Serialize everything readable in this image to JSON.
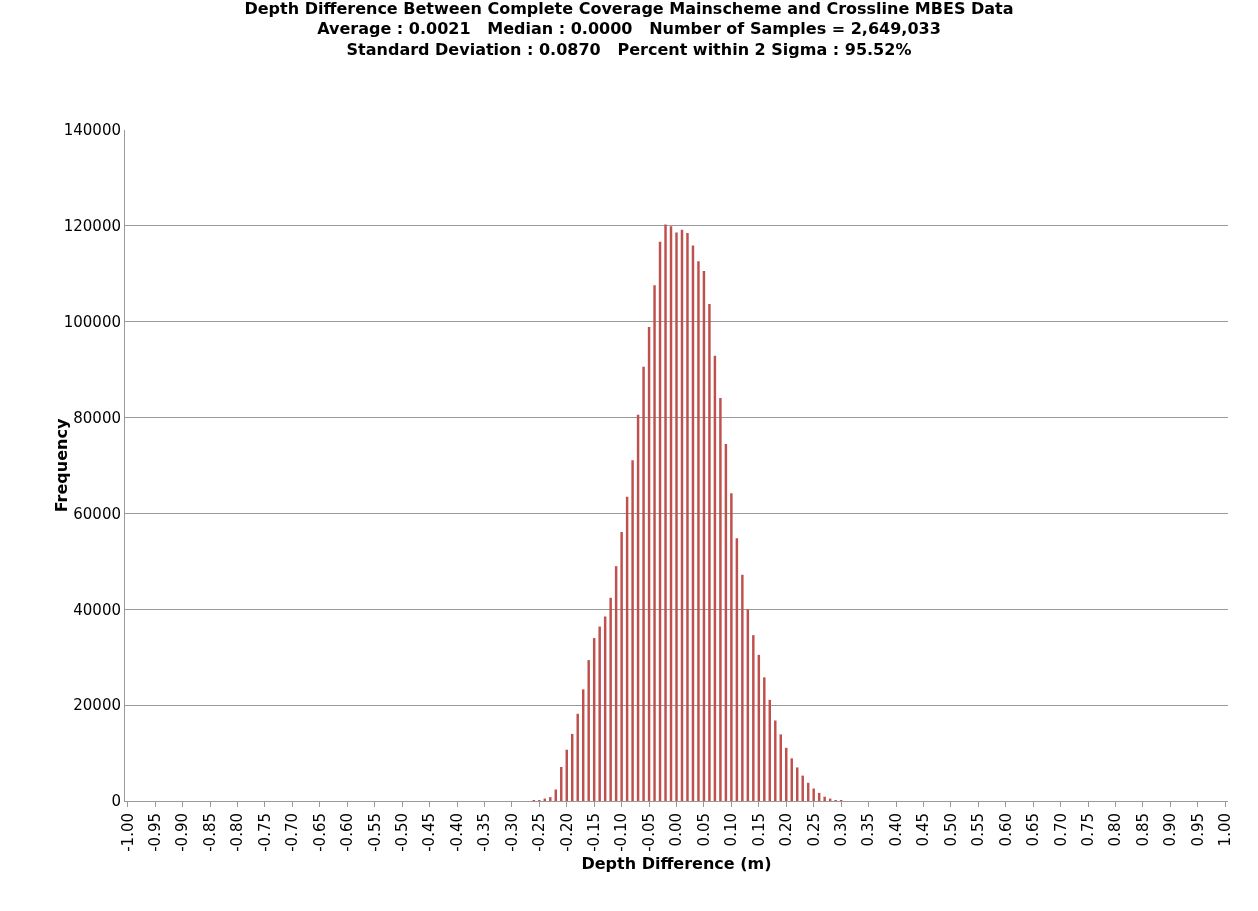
{
  "chart_data": {
    "type": "bar",
    "title": "Depth Difference Between Complete Coverage Mainscheme and Crossline MBES Data",
    "subtitle": "Average : 0.0021   Median : 0.0000   Number of Samples = 2,649,033\nStandard Deviation : 0.0870   Percent within 2 Sigma : 95.52%",
    "xlabel": "Depth Difference (m)",
    "ylabel": "Frequency",
    "categories": [
      "-1.00",
      null,
      null,
      null,
      null,
      "-0.95",
      null,
      null,
      null,
      null,
      "-0.90",
      null,
      null,
      null,
      null,
      "-0.85",
      null,
      null,
      null,
      null,
      "-0.80",
      null,
      null,
      null,
      null,
      "-0.75",
      null,
      null,
      null,
      null,
      "-0.70",
      null,
      null,
      null,
      null,
      "-0.65",
      null,
      null,
      null,
      null,
      "-0.60",
      null,
      null,
      null,
      null,
      "-0.55",
      null,
      null,
      null,
      null,
      "-0.50",
      null,
      null,
      null,
      null,
      "-0.45",
      null,
      null,
      null,
      null,
      "-0.40",
      null,
      null,
      null,
      null,
      "-0.35",
      null,
      null,
      null,
      null,
      "-0.30",
      null,
      null,
      null,
      null,
      "-0.25",
      null,
      null,
      null,
      null,
      "-0.20",
      null,
      null,
      null,
      null,
      "-0.15",
      null,
      null,
      null,
      null,
      "-0.10",
      null,
      null,
      null,
      null,
      "-0.05",
      null,
      null,
      null,
      null,
      "0.00",
      null,
      null,
      null,
      null,
      "0.05",
      null,
      null,
      null,
      null,
      "0.10",
      null,
      null,
      null,
      null,
      "0.15",
      null,
      null,
      null,
      null,
      "0.20",
      null,
      null,
      null,
      null,
      "0.25",
      null,
      null,
      null,
      null,
      "0.30",
      null,
      null,
      null,
      null,
      "0.35",
      null,
      null,
      null,
      null,
      "0.40",
      null,
      null,
      null,
      null,
      "0.45",
      null,
      null,
      null,
      null,
      "0.50",
      null,
      null,
      null,
      null,
      "0.55",
      null,
      null,
      null,
      null,
      "0.60",
      null,
      null,
      null,
      null,
      "0.65",
      null,
      null,
      null,
      null,
      "0.70",
      null,
      null,
      null,
      null,
      "0.75",
      null,
      null,
      null,
      null,
      "0.80",
      null,
      null,
      null,
      null,
      "0.85",
      null,
      null,
      null,
      null,
      "0.90",
      null,
      null,
      null,
      null,
      "0.95",
      null,
      null,
      null,
      null,
      "1.00"
    ],
    "values": [
      0,
      0,
      0,
      0,
      0,
      0,
      0,
      0,
      0,
      0,
      0,
      0,
      0,
      0,
      0,
      0,
      0,
      0,
      0,
      0,
      0,
      0,
      0,
      0,
      0,
      0,
      0,
      0,
      0,
      0,
      0,
      0,
      0,
      0,
      0,
      0,
      0,
      0,
      0,
      0,
      0,
      0,
      0,
      0,
      0,
      0,
      0,
      0,
      0,
      0,
      0,
      0,
      0,
      0,
      0,
      0,
      0,
      0,
      0,
      0,
      0,
      0,
      0,
      0,
      0,
      0,
      0,
      0,
      0,
      0,
      0,
      0,
      0,
      0,
      100,
      200,
      500,
      800,
      2400,
      7100,
      10700,
      14000,
      18200,
      23300,
      29400,
      34000,
      36400,
      38500,
      42400,
      49000,
      56100,
      63500,
      71100,
      80600,
      90600,
      98900,
      107600,
      116700,
      120300,
      119900,
      118600,
      119200,
      118500,
      115900,
      112600,
      110600,
      103700,
      92900,
      84100,
      74500,
      64200,
      54800,
      47200,
      40000,
      34600,
      30500,
      25800,
      21100,
      16800,
      13900,
      11100,
      8900,
      7000,
      5300,
      3800,
      2600,
      1700,
      900,
      500,
      200,
      100,
      0,
      0,
      0,
      0,
      0,
      0,
      0,
      0,
      0,
      0,
      0,
      0,
      0,
      0,
      0,
      0,
      0,
      0,
      0,
      0,
      0,
      0,
      0,
      0,
      0,
      0,
      0,
      0,
      0,
      0,
      0,
      0,
      0,
      0,
      0,
      0,
      0,
      0,
      0,
      0,
      0,
      0,
      0,
      0,
      0,
      0,
      0,
      0,
      0,
      0,
      0,
      0,
      0,
      0,
      0,
      0,
      0,
      0,
      0,
      0,
      0,
      0,
      0,
      0,
      0,
      0,
      0,
      0,
      0,
      0
    ],
    "color": "#c0504d",
    "ylim": [
      0,
      140000
    ],
    "yticks": [
      0,
      20000,
      40000,
      60000,
      80000,
      100000,
      120000,
      140000
    ],
    "grid": "y"
  }
}
